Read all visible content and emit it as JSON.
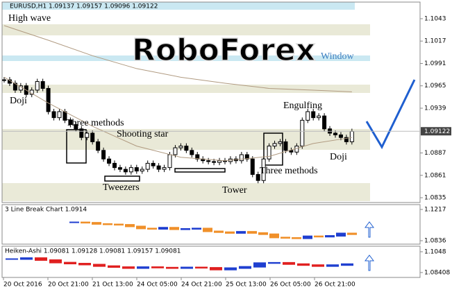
{
  "header": "EURUSD,H1  1.09137 1.09157 1.09096 1.09122",
  "watermark": "RoboForex",
  "chart_data": [
    {
      "type": "candle",
      "title": "EURUSD,H1",
      "ylim": [
        1.08294,
        1.10623
      ],
      "yticks": [
        1.1043,
        1.1017,
        1.0991,
        1.0965,
        1.0939,
        1.0887,
        1.0861,
        1.0835
      ],
      "current_price": 1.09122,
      "values": [
        1.0972,
        1.0968,
        1.096,
        1.0965,
        1.0955,
        1.096,
        1.097,
        1.0962,
        1.0935,
        1.0928,
        1.0935,
        1.0925,
        1.092,
        1.0915,
        1.0905,
        1.091,
        1.09,
        1.089,
        1.088,
        1.0875,
        1.087,
        1.0868,
        1.0865,
        1.087,
        1.0866,
        1.0868,
        1.0875,
        1.0872,
        1.0868,
        1.087,
        1.0885,
        1.0893,
        1.0895,
        1.089,
        1.0885,
        1.088,
        1.0878,
        1.0877,
        1.0876,
        1.0878,
        1.0877,
        1.088,
        1.0878,
        1.0885,
        1.088,
        1.0862,
        1.0855,
        1.088,
        1.0895,
        1.0898,
        1.09,
        1.089,
        1.0888,
        1.0895,
        1.0925,
        1.0935,
        1.0928,
        1.093,
        1.0915,
        1.091,
        1.0908,
        1.0905,
        1.09,
        1.0912
      ],
      "series": [
        {
          "name": "MA slow",
          "color": "#b09a80",
          "x": [
            0,
            8,
            16,
            24,
            32,
            40,
            48,
            56,
            63
          ],
          "values": [
            1.1035,
            1.1018,
            1.1,
            1.0985,
            1.0975,
            1.0968,
            1.0962,
            1.096,
            1.0958
          ]
        },
        {
          "name": "MA fast",
          "color": "#b09a80",
          "x": [
            0,
            8,
            16,
            24,
            32,
            40,
            48,
            56,
            63
          ],
          "values": [
            1.0975,
            1.0945,
            1.0918,
            1.0895,
            1.0882,
            1.0878,
            1.0883,
            1.0898,
            1.0905
          ]
        }
      ],
      "annotations": [
        "High wave",
        "Doji",
        "Three methods",
        "Shooting star",
        "Tweezers",
        "Tower",
        "Engulfing",
        "Three methods",
        "Doji",
        "Window"
      ]
    },
    {
      "type": "line-break",
      "title": "3 Line Break Chart 1.0914",
      "ylim": [
        1.0794,
        1.1276
      ],
      "yticks": [
        1.1217,
        1.0836
      ],
      "values": [
        1.106,
        1.1055,
        1.104,
        1.1035,
        1.103,
        1.101,
        1.0985,
        1.098,
        1.0995,
        1.0975,
        1.098,
        1.0985,
        1.095,
        1.094,
        1.093,
        1.0945,
        1.093,
        1.0915,
        1.0875,
        1.087,
        1.0865,
        1.089,
        1.0885,
        1.0895,
        1.0925,
        1.0915
      ]
    },
    {
      "type": "heiken-ashi",
      "title": "Heiken-Ashi 1.09081 1.09128 1.09081 1.09157 1.09081",
      "ylim": [
        1.0792,
        1.1103
      ],
      "yticks": [
        1.1048,
        1.08408
      ],
      "values": [
        1.0975,
        1.0985,
        1.0965,
        1.094,
        1.093,
        1.092,
        1.0905,
        1.0895,
        1.0885,
        1.0895,
        1.089,
        1.0885,
        1.0892,
        1.0888,
        1.087,
        1.0885,
        1.0898,
        1.0935,
        1.0938,
        1.0925,
        1.0915,
        1.0905,
        1.0915,
        1.0925
      ]
    }
  ],
  "x_labels": [
    "20 Oct 2016",
    "20 Oct 21:00",
    "21 Oct 13:00",
    "24 Oct 05:00",
    "24 Oct 21:00",
    "25 Oct 13:00",
    "26 Oct 05:00",
    "26 Oct 21:00"
  ]
}
